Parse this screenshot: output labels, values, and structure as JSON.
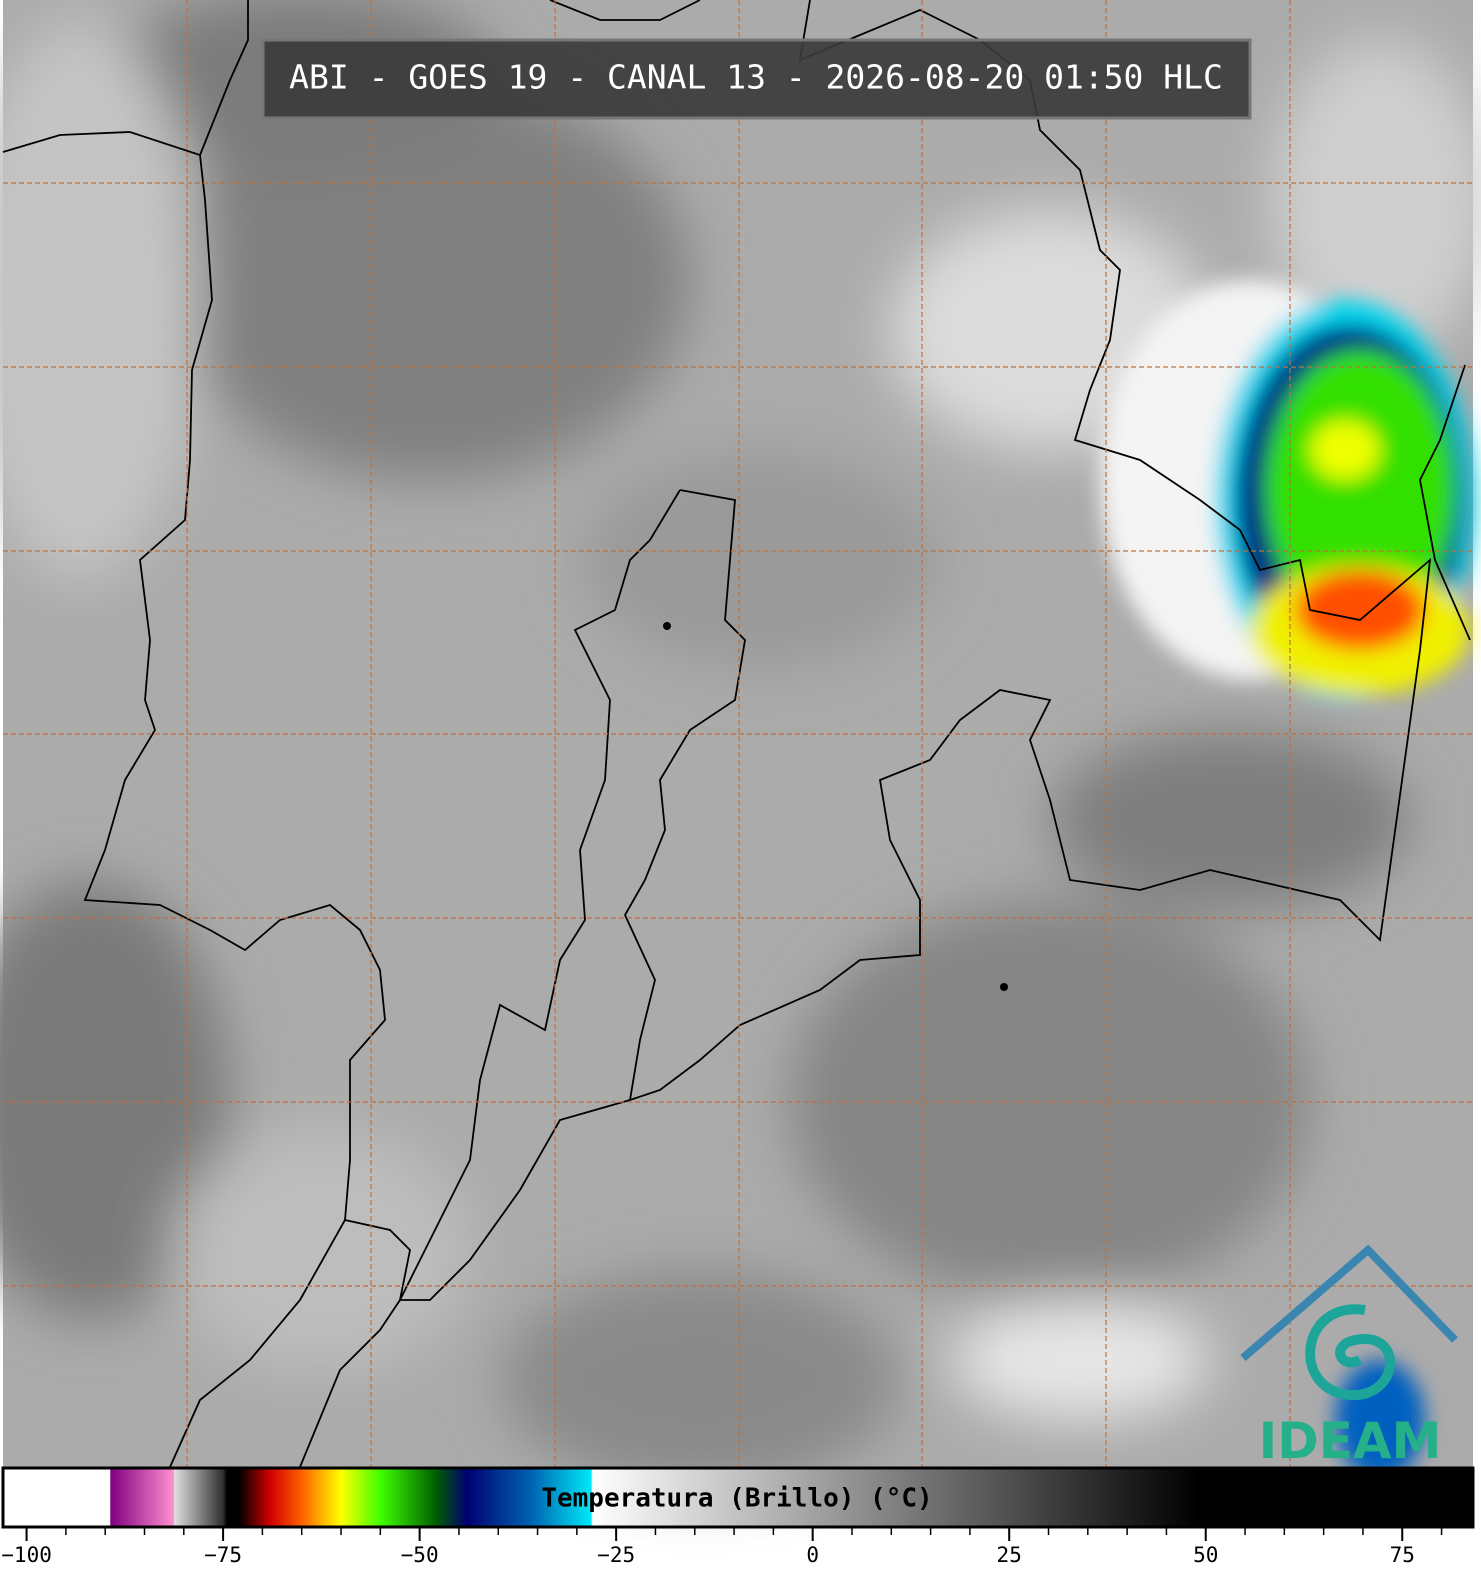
{
  "title": "ABI - GOES 19 - CANAL 13 - 2026-08-20 01:50 HLC",
  "logo": "IDEAM",
  "colorbar": {
    "label": "Temperatura (Brillo) (°C)",
    "lim": [
      -103,
      84
    ],
    "ticks": [
      {
        "value": -100,
        "label": "−100"
      },
      {
        "value": -75,
        "label": "−75"
      },
      {
        "value": -50,
        "label": "−50"
      },
      {
        "value": -25,
        "label": "−25"
      },
      0,
      25,
      50,
      75
    ],
    "stops": [
      {
        "value": -103,
        "color": "#ffffff"
      },
      {
        "value": -89.4,
        "color": "#ffffff"
      },
      {
        "value": -89.3,
        "color": "#800080"
      },
      {
        "value": -81.3,
        "color": "#ff90d0"
      },
      {
        "value": -81.2,
        "color": "#e0e0e0"
      },
      {
        "value": -75,
        "color": "#303030"
      },
      {
        "value": -74.5,
        "color": "#000000"
      },
      {
        "value": -73,
        "color": "#000000"
      },
      {
        "value": -69,
        "color": "#d00000"
      },
      {
        "value": -65,
        "color": "#ff6000"
      },
      {
        "value": -60,
        "color": "#ffff00"
      },
      {
        "value": -55,
        "color": "#40ff00"
      },
      {
        "value": -48,
        "color": "#006000"
      },
      {
        "value": -44,
        "color": "#000070"
      },
      {
        "value": -36,
        "color": "#0060b0"
      },
      {
        "value": -28.2,
        "color": "#00e8f8"
      },
      {
        "value": -28,
        "color": "#ffffff"
      },
      {
        "value": 49,
        "color": "#000000"
      },
      {
        "value": 84,
        "color": "#000000"
      }
    ]
  }
}
